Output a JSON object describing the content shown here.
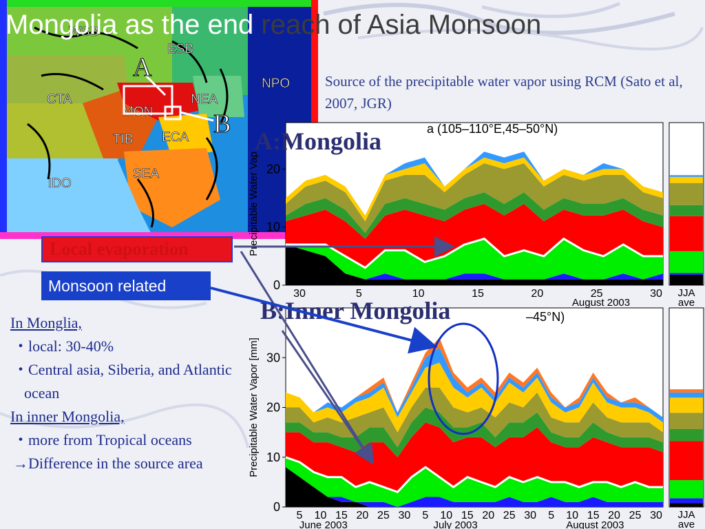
{
  "title": {
    "part1": "Mongolia as the end",
    "part2": " reach of Asia Monsoon"
  },
  "source_text": "Source of the precipitable water vapor using RCM (Sato et al, 2007, JGR)",
  "map": {
    "regions": [
      "WSB",
      "ESB",
      "CTA",
      "MON",
      "NEA",
      "NPO",
      "TIB",
      "ECA",
      "SEA",
      "IDO"
    ],
    "point_a": "A",
    "point_b": "B"
  },
  "labels": {
    "chart_a": "A:Mongolia",
    "chart_b": "B:Inner Mongolia",
    "local_box": "Local evaporation",
    "monsoon_box": "Monsoon related"
  },
  "notes": {
    "h1": "In Monglia,",
    "i1": "・local: 30-40%",
    "i2": "・Central asia, Siberia, and Atlantic ocean",
    "h2": "In inner Mongolia,",
    "i3": "・more from Tropical oceans",
    "i4": "→Difference in the source area"
  },
  "colors": {
    "local": "#ff0000",
    "monsoon_box": "#1840c8",
    "arrow": "#4a4e8a"
  },
  "chart_data": [
    {
      "type": "area",
      "title": "a (105–110°E,45–50°N)",
      "ylabel": "Precipitable Water Vap",
      "ylim": [
        0,
        28
      ],
      "yticks": [
        0,
        10,
        20
      ],
      "xticks": [
        "30",
        "5",
        "10",
        "15",
        "20",
        "25",
        "30"
      ],
      "xlabel": "August 2003",
      "ave_label": [
        "JJA",
        "ave"
      ],
      "series": [
        {
          "color": "#000000",
          "values": [
            7,
            6,
            5,
            2,
            1,
            1,
            1,
            1,
            1,
            1,
            1,
            1,
            1,
            1,
            1,
            1,
            1,
            1,
            1,
            1
          ]
        },
        {
          "color": "#1a1aff",
          "values": [
            0,
            0,
            0,
            0,
            0,
            1,
            0,
            0,
            0,
            1,
            1,
            0,
            0,
            0,
            1,
            0,
            0,
            1,
            0,
            1
          ]
        },
        {
          "color": "#00ee00",
          "values": [
            0,
            1,
            2,
            3,
            2,
            4,
            5,
            3,
            4,
            5,
            6,
            4,
            5,
            4,
            6,
            5,
            4,
            5,
            4,
            3
          ]
        },
        {
          "color": "#ff0000",
          "values": [
            4,
            5,
            6,
            6,
            5,
            6,
            7,
            8,
            6,
            6,
            6,
            7,
            8,
            6,
            5,
            6,
            7,
            6,
            6,
            5
          ]
        },
        {
          "color": "#2e9a2e",
          "values": [
            1,
            2,
            2,
            2,
            1,
            2,
            2,
            2,
            2,
            2,
            2,
            2,
            2,
            2,
            2,
            2,
            2,
            2,
            2,
            2
          ]
        },
        {
          "color": "#9a9a30",
          "values": [
            2,
            3,
            3,
            3,
            2,
            4,
            4,
            5,
            3,
            4,
            5,
            6,
            5,
            4,
            4,
            4,
            5,
            4,
            3,
            3
          ]
        },
        {
          "color": "#ffcc00",
          "values": [
            1,
            1,
            1,
            1,
            1,
            1,
            1,
            2,
            1,
            1,
            1,
            1,
            1,
            1,
            1,
            1,
            1,
            1,
            1,
            1
          ]
        },
        {
          "color": "#3399ff",
          "values": [
            0,
            0,
            0,
            0,
            0,
            0,
            1,
            1,
            0,
            0,
            1,
            1,
            1,
            0,
            0,
            0,
            1,
            0,
            0,
            0
          ]
        }
      ]
    },
    {
      "type": "area",
      "title": "–45°N)",
      "ylabel": "Precipitable Water Vapor [mm]",
      "ylim": [
        0,
        40
      ],
      "yticks": [
        0,
        10,
        20,
        30
      ],
      "xticks": [
        "5",
        "10",
        "15",
        "20",
        "25",
        "30",
        "5",
        "10",
        "15",
        "20",
        "25",
        "30",
        "5",
        "10",
        "15",
        "20",
        "25",
        "30"
      ],
      "xlabels": [
        "June 2003",
        "July 2003",
        "August 2003"
      ],
      "ave_label": [
        "JJA",
        "ave"
      ],
      "series": [
        {
          "color": "#000000",
          "values": [
            8,
            6,
            4,
            2,
            1,
            1,
            0,
            0,
            0,
            0,
            0,
            0,
            0,
            0,
            0,
            0,
            0,
            0,
            0,
            0,
            0,
            0,
            0,
            0,
            0,
            0,
            0,
            0
          ]
        },
        {
          "color": "#1a1aff",
          "values": [
            0,
            0,
            0,
            0,
            1,
            0,
            1,
            1,
            0,
            1,
            2,
            2,
            1,
            1,
            1,
            1,
            2,
            1,
            1,
            2,
            1,
            1,
            2,
            1,
            1,
            1,
            1,
            1
          ]
        },
        {
          "color": "#00ee00",
          "values": [
            2,
            3,
            3,
            4,
            4,
            3,
            4,
            3,
            3,
            5,
            6,
            4,
            3,
            5,
            4,
            3,
            4,
            4,
            5,
            3,
            4,
            3,
            3,
            4,
            3,
            4,
            3,
            3
          ]
        },
        {
          "color": "#ff0000",
          "values": [
            5,
            6,
            6,
            7,
            6,
            7,
            8,
            9,
            7,
            8,
            9,
            10,
            9,
            8,
            9,
            8,
            8,
            9,
            10,
            8,
            7,
            8,
            9,
            8,
            8,
            7,
            8,
            7
          ]
        },
        {
          "color": "#2e9a2e",
          "values": [
            2,
            2,
            2,
            2,
            2,
            3,
            3,
            3,
            2,
            3,
            3,
            3,
            3,
            2,
            3,
            2,
            3,
            3,
            3,
            2,
            2,
            2,
            3,
            2,
            2,
            2,
            2,
            2
          ]
        },
        {
          "color": "#9a9a30",
          "values": [
            3,
            3,
            2,
            3,
            3,
            4,
            3,
            4,
            3,
            3,
            4,
            5,
            4,
            3,
            3,
            4,
            4,
            3,
            4,
            3,
            3,
            3,
            4,
            3,
            3,
            3,
            3,
            2
          ]
        },
        {
          "color": "#ffcc00",
          "values": [
            3,
            2,
            2,
            2,
            2,
            3,
            3,
            4,
            3,
            3,
            4,
            5,
            4,
            3,
            4,
            3,
            4,
            3,
            3,
            3,
            2,
            3,
            4,
            3,
            3,
            3,
            2,
            2
          ]
        },
        {
          "color": "#3399ff",
          "values": [
            0,
            0,
            0,
            1,
            1,
            1,
            1,
            1,
            1,
            1,
            2,
            3,
            2,
            1,
            1,
            1,
            1,
            1,
            1,
            1,
            1,
            1,
            1,
            1,
            1,
            1,
            1,
            1
          ]
        },
        {
          "color": "#ff7722",
          "values": [
            0,
            0,
            0,
            0,
            0,
            0,
            1,
            1,
            0,
            1,
            1,
            2,
            1,
            1,
            1,
            1,
            1,
            1,
            1,
            1,
            0,
            1,
            1,
            1,
            0,
            1,
            0,
            0
          ]
        }
      ]
    }
  ]
}
